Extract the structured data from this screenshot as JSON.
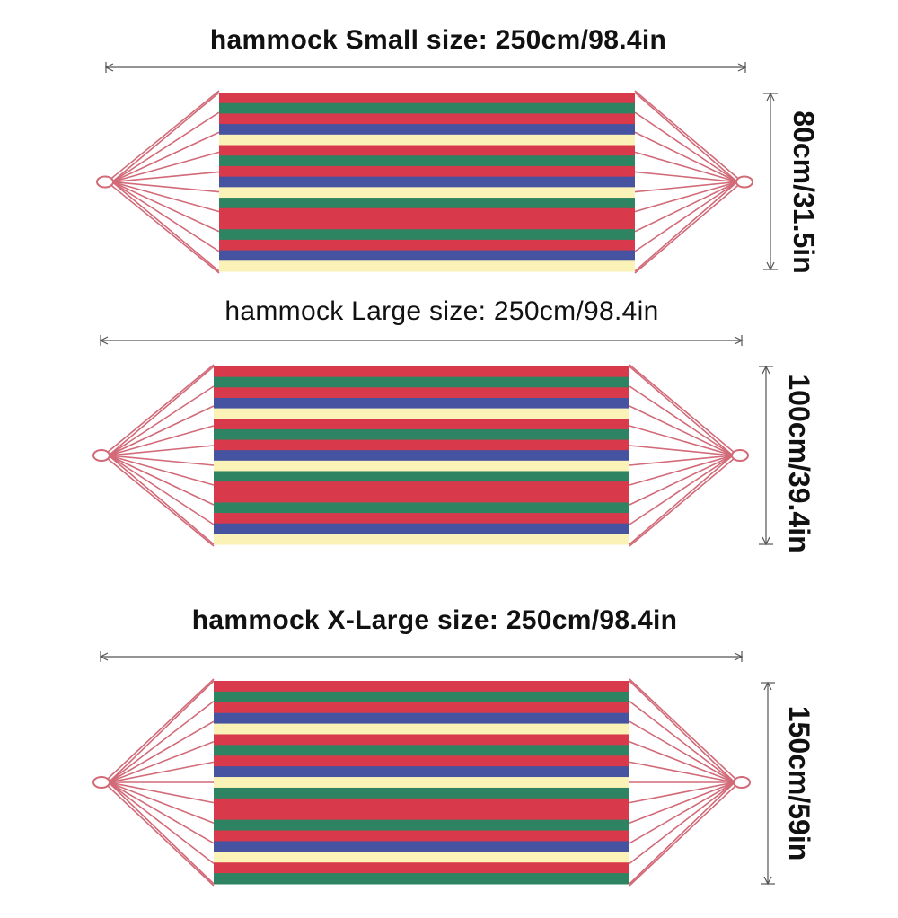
{
  "hammocks": [
    {
      "name": "small",
      "title": "hammock Small size: 250cm/98.4in",
      "width_label": "80cm/31.5in"
    },
    {
      "name": "large",
      "title": "hammock Large size: 250cm/98.4in",
      "width_label": "100cm/39.4in"
    },
    {
      "name": "xlarge",
      "title": "hammock X-Large size: 250cm/98.4in",
      "width_label": "150cm/59in"
    }
  ],
  "colors": {
    "red": "#d93a4b",
    "green": "#2e8462",
    "blue": "#4553a0",
    "cream": "#fbf2b8",
    "rope": "#d26a78",
    "dimension_line": "#555555"
  }
}
